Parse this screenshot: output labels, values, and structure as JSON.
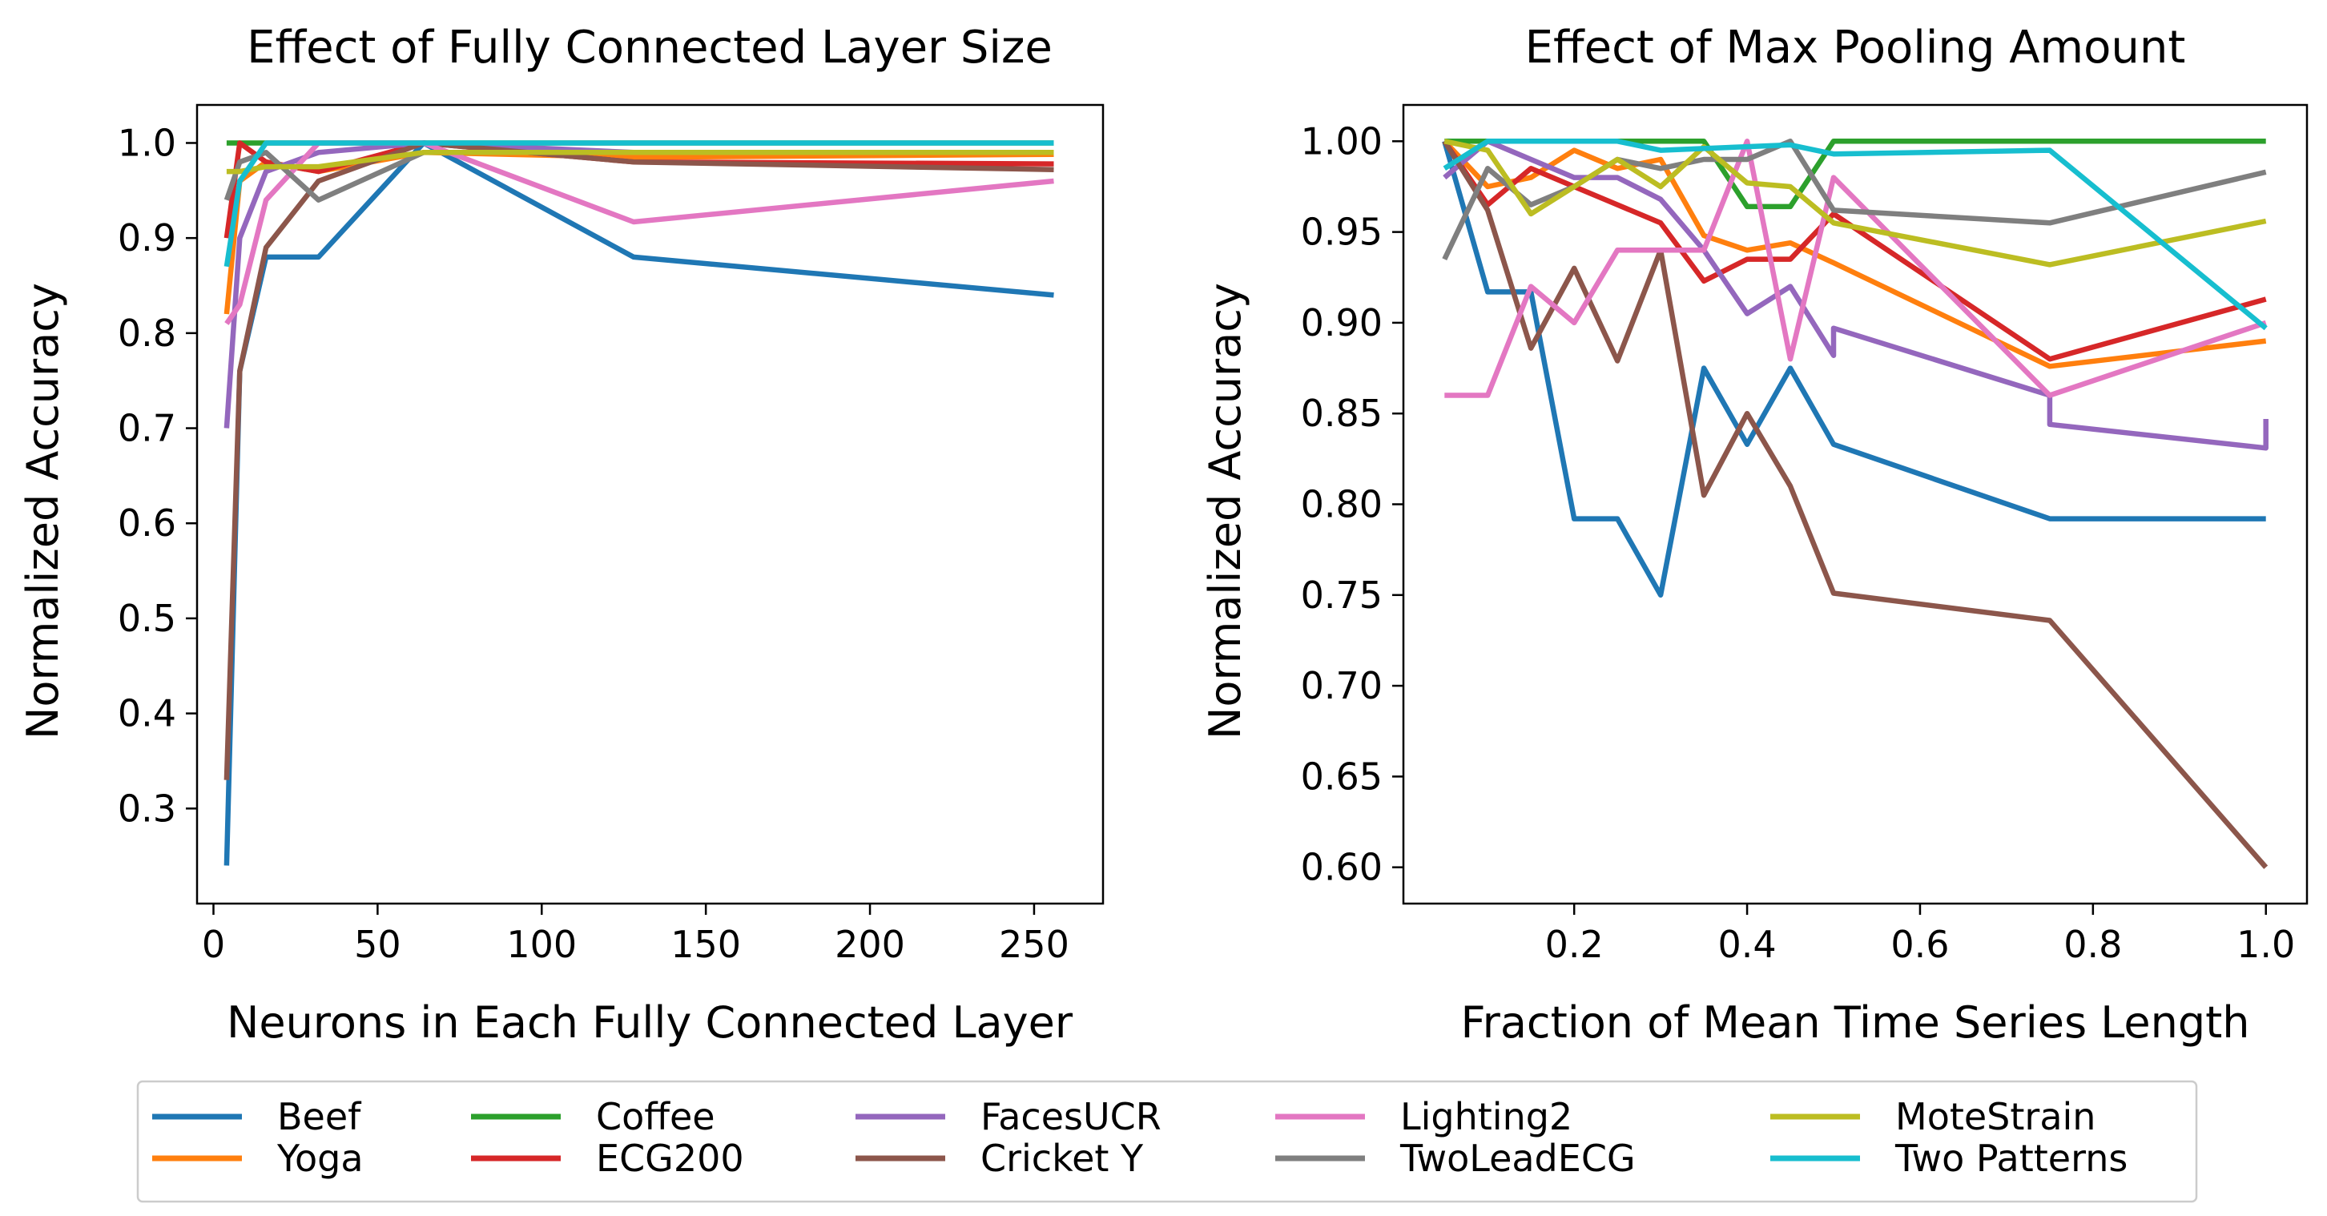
{
  "chart_data": [
    {
      "type": "line",
      "title": "Effect of Fully Connected Layer Size",
      "xlabel": "Neurons in Each Fully Connected Layer",
      "ylabel": "Normalized Accuracy",
      "xlim": [
        -5,
        271
      ],
      "ylim": [
        0.2,
        1.04
      ],
      "xticks": [
        0,
        50,
        100,
        150,
        200,
        250
      ],
      "xtick_labels": [
        "0",
        "50",
        "100",
        "150",
        "200",
        "250"
      ],
      "yticks": [
        0.3,
        0.4,
        0.5,
        0.6,
        0.7,
        0.8,
        0.9,
        1.0
      ],
      "ytick_labels": [
        "0.3",
        "0.4",
        "0.5",
        "0.6",
        "0.7",
        "0.8",
        "0.9",
        "1.0"
      ],
      "grid": false,
      "series": [
        {
          "name": "Beef",
          "color": "#1f77b4",
          "points": [
            [
              4,
              0.24
            ],
            [
              8,
              0.76
            ],
            [
              16,
              0.88
            ],
            [
              32,
              0.88
            ],
            [
              64,
              1.0
            ],
            [
              128,
              0.88
            ],
            [
              256,
              0.84
            ]
          ]
        },
        {
          "name": "Yoga",
          "color": "#ff7f0e",
          "points": [
            [
              4,
              0.82
            ],
            [
              8,
              0.96
            ],
            [
              16,
              0.98
            ],
            [
              32,
              0.97
            ],
            [
              64,
              0.99
            ],
            [
              128,
              0.985
            ],
            [
              256,
              0.988
            ]
          ]
        },
        {
          "name": "Coffee",
          "color": "#2ca02c",
          "points": [
            [
              4,
              1.0
            ],
            [
              8,
              1.0
            ],
            [
              16,
              1.0
            ],
            [
              32,
              1.0
            ],
            [
              64,
              1.0
            ],
            [
              128,
              1.0
            ],
            [
              256,
              1.0
            ]
          ]
        },
        {
          "name": "ECG200",
          "color": "#d62728",
          "points": [
            [
              4,
              0.9
            ],
            [
              8,
              1.0
            ],
            [
              16,
              0.98
            ],
            [
              32,
              0.97
            ],
            [
              64,
              1.0
            ],
            [
              128,
              0.98
            ],
            [
              256,
              0.978
            ]
          ]
        },
        {
          "name": "FacesUCR",
          "color": "#9467bd",
          "points": [
            [
              4,
              0.7
            ],
            [
              8,
              0.9
            ],
            [
              16,
              0.97
            ],
            [
              32,
              0.99
            ],
            [
              64,
              1.0
            ],
            [
              128,
              0.99
            ],
            [
              256,
              0.99
            ]
          ]
        },
        {
          "name": "Cricket Y",
          "color": "#8c564b",
          "points": [
            [
              4,
              0.33
            ],
            [
              8,
              0.76
            ],
            [
              16,
              0.89
            ],
            [
              32,
              0.96
            ],
            [
              64,
              1.0
            ],
            [
              128,
              0.98
            ],
            [
              256,
              0.972
            ]
          ]
        },
        {
          "name": "Lighting2",
          "color": "#e377c2",
          "points": [
            [
              4,
              0.81
            ],
            [
              8,
              0.83
            ],
            [
              16,
              0.94
            ],
            [
              32,
              1.0
            ],
            [
              64,
              1.0
            ],
            [
              128,
              0.917
            ],
            [
              256,
              0.96
            ]
          ]
        },
        {
          "name": "TwoLeadECG",
          "color": "#7f7f7f",
          "points": [
            [
              4,
              0.94
            ],
            [
              8,
              0.98
            ],
            [
              16,
              0.99
            ],
            [
              32,
              0.94
            ],
            [
              64,
              0.99
            ],
            [
              128,
              0.99
            ],
            [
              256,
              0.99
            ]
          ]
        },
        {
          "name": "MoteStrain",
          "color": "#bcbd22",
          "points": [
            [
              4,
              0.97
            ],
            [
              8,
              0.97
            ],
            [
              16,
              0.975
            ],
            [
              32,
              0.975
            ],
            [
              64,
              0.99
            ],
            [
              128,
              0.99
            ],
            [
              256,
              0.99
            ]
          ]
        },
        {
          "name": "Two Patterns",
          "color": "#17becf",
          "points": [
            [
              4,
              0.87
            ],
            [
              8,
              0.96
            ],
            [
              16,
              1.0
            ],
            [
              32,
              1.0
            ],
            [
              64,
              1.0
            ],
            [
              128,
              1.0
            ],
            [
              256,
              1.0
            ]
          ]
        }
      ]
    },
    {
      "type": "line",
      "title": "Effect of Max Pooling Amount",
      "xlabel": "Fraction of Mean Time Series Length",
      "ylabel": "Normalized Accuracy",
      "xlim": [
        0.0025,
        1.0475
      ],
      "ylim": [
        0.58,
        1.02
      ],
      "xticks": [
        0.2,
        0.4,
        0.6,
        0.8,
        1.0
      ],
      "xtick_labels": [
        "0.2",
        "0.4",
        "0.6",
        "0.8",
        "1.0"
      ],
      "yticks": [
        0.6,
        0.65,
        0.7,
        0.75,
        0.8,
        0.85,
        0.9,
        0.95,
        1.0
      ],
      "ytick_labels": [
        "0.60",
        "0.65",
        "0.70",
        "0.75",
        "0.80",
        "0.85",
        "0.90",
        "0.95",
        "1.00"
      ],
      "grid": false,
      "series": [
        {
          "name": "Beef",
          "color": "#1f77b4",
          "points": [
            [
              0.05,
              1.0
            ],
            [
              0.1,
              0.917
            ],
            [
              0.15,
              0.917
            ],
            [
              0.2,
              0.792
            ],
            [
              0.25,
              0.792
            ],
            [
              0.3,
              0.75
            ],
            [
              0.35,
              0.875
            ],
            [
              0.4,
              0.833
            ],
            [
              0.45,
              0.875
            ],
            [
              0.5,
              0.833
            ],
            [
              0.75,
              0.792
            ],
            [
              1.0,
              0.792
            ]
          ]
        },
        {
          "name": "Yoga",
          "color": "#ff7f0e",
          "points": [
            [
              0.05,
              1.0
            ],
            [
              0.1,
              0.975
            ],
            [
              0.15,
              0.98
            ],
            [
              0.2,
              0.995
            ],
            [
              0.25,
              0.985
            ],
            [
              0.3,
              0.99
            ],
            [
              0.35,
              0.948
            ],
            [
              0.4,
              0.94
            ],
            [
              0.45,
              0.944
            ],
            [
              0.5,
              0.933
            ],
            [
              0.75,
              0.876
            ],
            [
              1.0,
              0.89
            ]
          ]
        },
        {
          "name": "Coffee",
          "color": "#2ca02c",
          "points": [
            [
              0.05,
              1.0
            ],
            [
              0.1,
              1.0
            ],
            [
              0.15,
              1.0
            ],
            [
              0.2,
              1.0
            ],
            [
              0.25,
              1.0
            ],
            [
              0.3,
              1.0
            ],
            [
              0.35,
              1.0
            ],
            [
              0.4,
              0.964
            ],
            [
              0.45,
              0.964
            ],
            [
              0.5,
              1.0
            ],
            [
              0.75,
              1.0
            ],
            [
              1.0,
              1.0
            ]
          ]
        },
        {
          "name": "ECG200",
          "color": "#d62728",
          "points": [
            [
              0.05,
              1.0
            ],
            [
              0.1,
              0.965
            ],
            [
              0.15,
              0.985
            ],
            [
              0.2,
              0.975
            ],
            [
              0.25,
              0.965
            ],
            [
              0.3,
              0.955
            ],
            [
              0.35,
              0.923
            ],
            [
              0.4,
              0.935
            ],
            [
              0.45,
              0.935
            ],
            [
              0.5,
              0.96
            ],
            [
              0.75,
              0.88
            ],
            [
              1.0,
              0.913
            ]
          ]
        },
        {
          "name": "FacesUCR",
          "color": "#9467bd",
          "points": [
            [
              0.05,
              0.98
            ],
            [
              0.1,
              1.0
            ],
            [
              0.15,
              0.99
            ],
            [
              0.2,
              0.98
            ],
            [
              0.25,
              0.98
            ],
            [
              0.3,
              0.968
            ],
            [
              0.35,
              0.94
            ],
            [
              0.4,
              0.905
            ],
            [
              0.45,
              0.92
            ],
            [
              0.5,
              0.882
            ],
            [
              0.5,
              0.897
            ],
            [
              0.75,
              0.86
            ],
            [
              0.75,
              0.844
            ],
            [
              1.0,
              0.831
            ],
            [
              1.0,
              0.847
            ]
          ]
        },
        {
          "name": "Cricket Y",
          "color": "#8c564b",
          "points": [
            [
              0.05,
              1.0
            ],
            [
              0.1,
              0.962
            ],
            [
              0.15,
              0.886
            ],
            [
              0.2,
              0.93
            ],
            [
              0.25,
              0.879
            ],
            [
              0.3,
              0.94
            ],
            [
              0.35,
              0.805
            ],
            [
              0.4,
              0.85
            ],
            [
              0.45,
              0.81
            ],
            [
              0.5,
              0.751
            ],
            [
              0.75,
              0.736
            ],
            [
              1.0,
              0.6
            ]
          ]
        },
        {
          "name": "Lighting2",
          "color": "#e377c2",
          "points": [
            [
              0.05,
              0.86
            ],
            [
              0.1,
              0.86
            ],
            [
              0.15,
              0.92
            ],
            [
              0.2,
              0.9
            ],
            [
              0.25,
              0.94
            ],
            [
              0.3,
              0.94
            ],
            [
              0.35,
              0.94
            ],
            [
              0.4,
              1.0
            ],
            [
              0.45,
              0.88
            ],
            [
              0.5,
              0.98
            ],
            [
              0.75,
              0.86
            ],
            [
              1.0,
              0.9
            ]
          ]
        },
        {
          "name": "TwoLeadECG",
          "color": "#7f7f7f",
          "points": [
            [
              0.05,
              0.935
            ],
            [
              0.1,
              0.985
            ],
            [
              0.15,
              0.965
            ],
            [
              0.2,
              0.975
            ],
            [
              0.25,
              0.99
            ],
            [
              0.3,
              0.985
            ],
            [
              0.35,
              0.99
            ],
            [
              0.4,
              0.99
            ],
            [
              0.45,
              1.0
            ],
            [
              0.5,
              0.962
            ],
            [
              0.75,
              0.955
            ],
            [
              1.0,
              0.983
            ]
          ]
        },
        {
          "name": "MoteStrain",
          "color": "#bcbd22",
          "points": [
            [
              0.05,
              1.0
            ],
            [
              0.1,
              0.995
            ],
            [
              0.15,
              0.96
            ],
            [
              0.2,
              0.975
            ],
            [
              0.25,
              0.99
            ],
            [
              0.3,
              0.975
            ],
            [
              0.35,
              0.997
            ],
            [
              0.4,
              0.977
            ],
            [
              0.45,
              0.975
            ],
            [
              0.5,
              0.955
            ],
            [
              0.75,
              0.932
            ],
            [
              1.0,
              0.956
            ]
          ]
        },
        {
          "name": "Two Patterns",
          "color": "#17becf",
          "points": [
            [
              0.05,
              0.985
            ],
            [
              0.1,
              1.0
            ],
            [
              0.15,
              1.0
            ],
            [
              0.2,
              1.0
            ],
            [
              0.25,
              1.0
            ],
            [
              0.3,
              0.995
            ],
            [
              0.35,
              0.996
            ],
            [
              0.4,
              0.997
            ],
            [
              0.45,
              0.998
            ],
            [
              0.5,
              0.993
            ],
            [
              0.75,
              0.995
            ],
            [
              1.0,
              0.897
            ]
          ]
        }
      ]
    }
  ],
  "legend": {
    "placement": "bottom-center",
    "columns": 5,
    "entries": [
      "Beef",
      "Yoga",
      "Coffee",
      "ECG200",
      "FacesUCR",
      "Cricket Y",
      "Lighting2",
      "TwoLeadECG",
      "MoteStrain",
      "Two Patterns"
    ]
  }
}
